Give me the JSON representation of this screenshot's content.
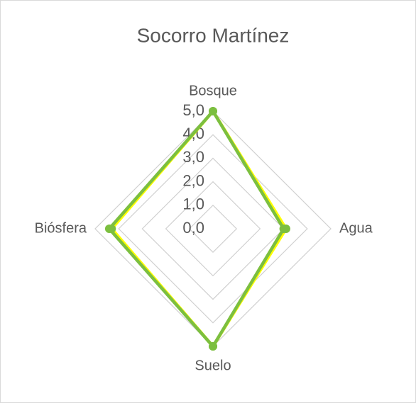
{
  "chart_data": {
    "type": "radar",
    "title": "Socorro Martínez",
    "categories": [
      "Bosque",
      "Agua",
      "Suelo",
      "Biósfera"
    ],
    "series": [
      {
        "color": "#ffff00",
        "values": [
          5,
          3.1,
          5,
          4.3
        ]
      },
      {
        "color": "#7cbf3f",
        "values": [
          5,
          3,
          5,
          4.4
        ]
      }
    ],
    "ylim": [
      0,
      5
    ],
    "yticks": [
      {
        "value": 0,
        "label": "0,0"
      },
      {
        "value": 1,
        "label": "1,0"
      },
      {
        "value": 2,
        "label": "2,0"
      },
      {
        "value": 3,
        "label": "3,0"
      },
      {
        "value": 4,
        "label": "4,0"
      },
      {
        "value": 5,
        "label": "5,0"
      }
    ],
    "grid": true
  }
}
